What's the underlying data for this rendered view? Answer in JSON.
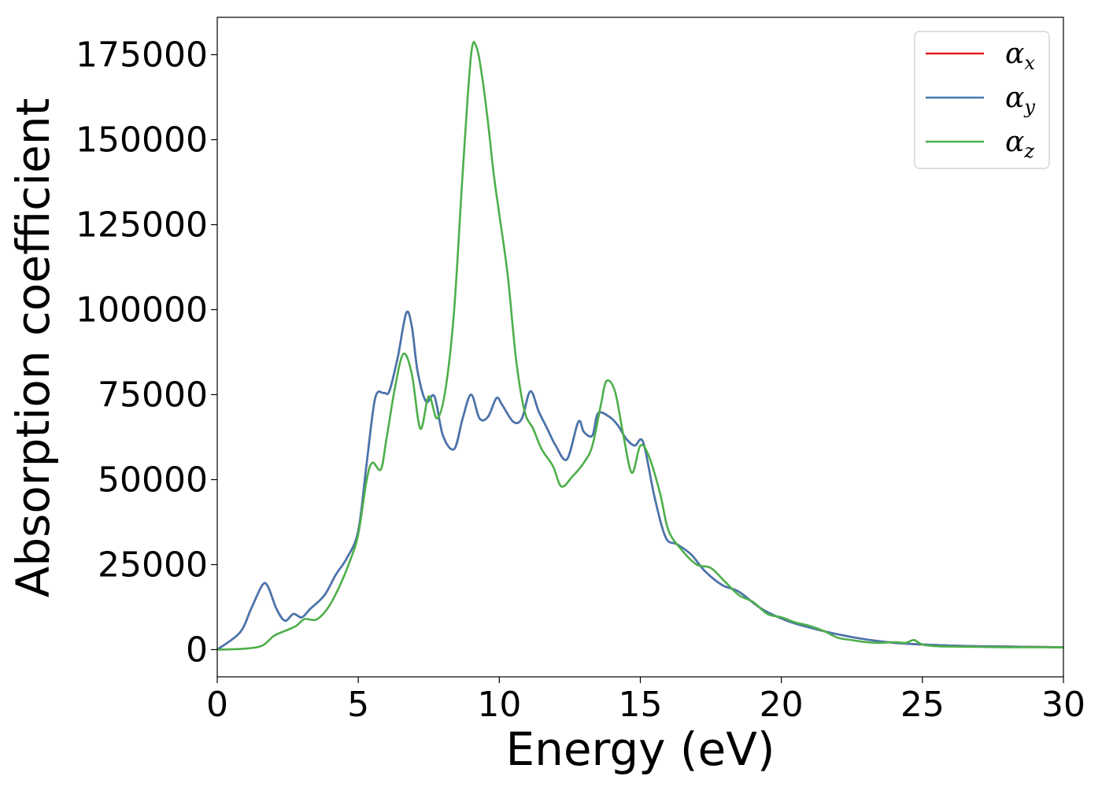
{
  "chart_data": {
    "type": "line",
    "xlabel": "Energy (eV)",
    "ylabel": "Absorption coefficient",
    "xlim": [
      0,
      30
    ],
    "ylim": [
      -8000,
      186000
    ],
    "xticks": [
      0,
      5,
      10,
      15,
      20,
      25,
      30
    ],
    "xtick_labels": [
      "0",
      "5",
      "10",
      "15",
      "20",
      "25",
      "30"
    ],
    "yticks": [
      0,
      25000,
      50000,
      75000,
      100000,
      125000,
      150000,
      175000
    ],
    "ytick_labels": [
      "0",
      "25000",
      "50000",
      "75000",
      "100000",
      "125000",
      "150000",
      "175000"
    ],
    "grid": false,
    "legend_position": "top-right",
    "series": [
      {
        "name": "α_x",
        "label_main": "α",
        "label_sub": "x",
        "color": "#e41a1c",
        "x": [
          0,
          0.8,
          1.2,
          1.6,
          1.8,
          2.1,
          2.4,
          2.7,
          3.0,
          3.3,
          3.8,
          4.2,
          4.6,
          5.0,
          5.3,
          5.6,
          5.9,
          6.1,
          6.4,
          6.7,
          6.9,
          7.1,
          7.4,
          7.7,
          8.0,
          8.4,
          8.7,
          9.0,
          9.3,
          9.6,
          9.9,
          10.1,
          10.5,
          10.8,
          11.1,
          11.4,
          11.7,
          12.0,
          12.4,
          12.8,
          13.0,
          13.3,
          13.5,
          13.9,
          14.2,
          14.5,
          14.8,
          15.1,
          15.5,
          15.9,
          16.3,
          16.8,
          17.3,
          17.9,
          18.5,
          19.3,
          20.2,
          21.0,
          22.0,
          23.0,
          24.0,
          25.0,
          26.0,
          27.0,
          28.0,
          29.0,
          30.0
        ],
        "y": [
          0,
          5000,
          12000,
          19000,
          18500,
          12000,
          8500,
          10500,
          9500,
          12000,
          16000,
          22000,
          27000,
          35000,
          55000,
          74000,
          75500,
          76000,
          86000,
          99000,
          95000,
          82000,
          73000,
          74500,
          63000,
          59000,
          68000,
          75000,
          68000,
          68500,
          74000,
          72000,
          67000,
          68000,
          76000,
          70000,
          65000,
          60000,
          56000,
          67000,
          64000,
          63000,
          69500,
          68500,
          66000,
          62000,
          60000,
          61000,
          45000,
          33000,
          31000,
          28000,
          23000,
          19000,
          17000,
          12000,
          8500,
          6500,
          4500,
          3000,
          2000,
          1500,
          1200,
          1000,
          900,
          800,
          700
        ]
      },
      {
        "name": "α_y",
        "label_main": "α",
        "label_sub": "y",
        "color": "#4377b0",
        "x": [
          0,
          0.8,
          1.2,
          1.6,
          1.8,
          2.1,
          2.4,
          2.7,
          3.0,
          3.3,
          3.8,
          4.2,
          4.6,
          5.0,
          5.3,
          5.6,
          5.9,
          6.1,
          6.4,
          6.7,
          6.9,
          7.1,
          7.4,
          7.7,
          8.0,
          8.4,
          8.7,
          9.0,
          9.3,
          9.6,
          9.9,
          10.1,
          10.5,
          10.8,
          11.1,
          11.4,
          11.7,
          12.0,
          12.4,
          12.8,
          13.0,
          13.3,
          13.5,
          13.9,
          14.2,
          14.5,
          14.8,
          15.1,
          15.5,
          15.9,
          16.3,
          16.8,
          17.3,
          17.9,
          18.5,
          19.3,
          20.2,
          21.0,
          22.0,
          23.0,
          24.0,
          25.0,
          26.0,
          27.0,
          28.0,
          29.0,
          30.0
        ],
        "y": [
          0,
          5000,
          12000,
          19000,
          18500,
          12000,
          8500,
          10500,
          9500,
          12000,
          16000,
          22000,
          27000,
          35000,
          55000,
          74000,
          75500,
          76000,
          86000,
          99000,
          95000,
          82000,
          73000,
          74500,
          63000,
          59000,
          68000,
          75000,
          68000,
          68500,
          74000,
          72000,
          67000,
          68000,
          76000,
          70000,
          65000,
          60000,
          56000,
          67000,
          64000,
          63000,
          69500,
          68500,
          66000,
          62000,
          60000,
          61000,
          45000,
          33000,
          31000,
          28000,
          23000,
          19000,
          17000,
          12000,
          8500,
          6500,
          4500,
          3000,
          2000,
          1500,
          1200,
          1000,
          900,
          800,
          700
        ]
      },
      {
        "name": "α_z",
        "label_main": "α",
        "label_sub": "z",
        "color": "#4daf4a",
        "x": [
          0,
          1.0,
          1.6,
          2.0,
          2.4,
          2.8,
          3.1,
          3.5,
          3.9,
          4.3,
          4.7,
          5.0,
          5.3,
          5.5,
          5.8,
          6.0,
          6.3,
          6.6,
          6.9,
          7.2,
          7.5,
          7.8,
          8.1,
          8.4,
          8.7,
          9.0,
          9.2,
          9.4,
          9.6,
          9.8,
          10.0,
          10.3,
          10.6,
          10.9,
          11.2,
          11.5,
          11.9,
          12.2,
          12.6,
          13.0,
          13.3,
          13.6,
          13.8,
          14.1,
          14.4,
          14.7,
          15.0,
          15.3,
          15.7,
          16.0,
          16.5,
          17.0,
          17.5,
          18.0,
          18.5,
          19.0,
          19.5,
          20.0,
          20.5,
          21.0,
          21.5,
          22.0,
          22.5,
          23.0,
          23.5,
          24.0,
          24.4,
          24.7,
          25.0,
          25.5,
          26.0,
          27.0,
          28.0,
          29.0,
          30.0
        ],
        "y": [
          0,
          300,
          1200,
          4000,
          5500,
          7000,
          9000,
          8800,
          12000,
          18000,
          26000,
          34000,
          50000,
          55000,
          53000,
          62000,
          77000,
          87000,
          81000,
          65000,
          74500,
          68000,
          77000,
          100000,
          140000,
          175000,
          177000,
          168000,
          155000,
          140000,
          128000,
          110000,
          85000,
          70000,
          65000,
          59000,
          54000,
          48000,
          51000,
          55000,
          60000,
          72000,
          79000,
          76000,
          63000,
          52000,
          60000,
          57000,
          46000,
          35000,
          29000,
          25000,
          24000,
          20000,
          16000,
          14000,
          10500,
          9500,
          8000,
          7000,
          5500,
          3500,
          2800,
          2200,
          2000,
          2200,
          2000,
          2800,
          1500,
          1000,
          900,
          800,
          700,
          700,
          700
        ]
      }
    ]
  }
}
